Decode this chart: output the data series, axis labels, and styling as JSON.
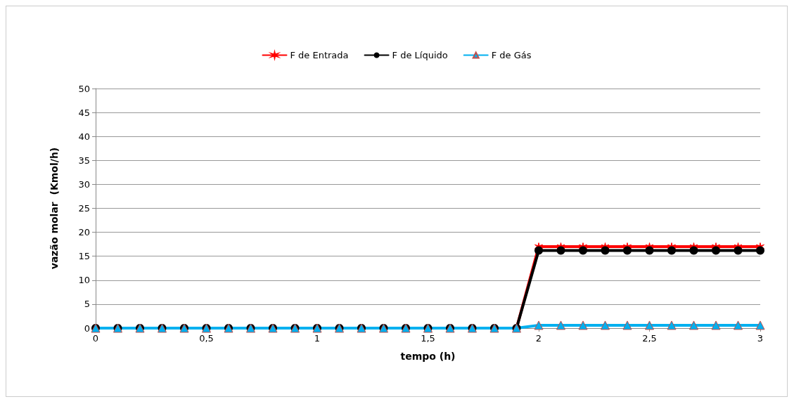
{
  "chart_data": {
    "type": "line",
    "xlabel": "tempo (h)",
    "ylabel": "vazão molar  (Kmol/h)",
    "x": [
      0,
      0.1,
      0.2,
      0.3,
      0.4,
      0.5,
      0.6,
      0.7,
      0.8,
      0.9,
      1,
      1.1,
      1.2,
      1.3,
      1.4,
      1.5,
      1.6,
      1.7,
      1.8,
      1.9,
      2,
      2.1,
      2.2,
      2.3,
      2.4,
      2.5,
      2.6,
      2.7,
      2.8,
      2.9,
      3
    ],
    "series": [
      {
        "name": "F de Entrada",
        "color": "#ff0000",
        "marker": "cross",
        "values": [
          null,
          null,
          null,
          null,
          null,
          null,
          null,
          null,
          null,
          null,
          null,
          null,
          null,
          null,
          null,
          null,
          null,
          null,
          null,
          0,
          17,
          17,
          17,
          17,
          17,
          17,
          17,
          17,
          17,
          17,
          17
        ]
      },
      {
        "name": "F de Líquido",
        "color": "#000000",
        "marker": "circle",
        "values": [
          0,
          0,
          0,
          0,
          0,
          0,
          0,
          0,
          0,
          0,
          0,
          0,
          0,
          0,
          0,
          0,
          0,
          0,
          0,
          0,
          16.2,
          16.2,
          16.2,
          16.2,
          16.2,
          16.2,
          16.2,
          16.2,
          16.2,
          16.2,
          16.2
        ]
      },
      {
        "name": "F de Gás",
        "color": "#00b0f0",
        "marker": "triangle",
        "values": [
          0,
          0,
          0,
          0,
          0,
          0,
          0,
          0,
          0,
          0,
          0,
          0,
          0,
          0,
          0,
          0,
          0,
          0,
          0,
          0,
          0.6,
          0.6,
          0.6,
          0.6,
          0.6,
          0.6,
          0.6,
          0.6,
          0.6,
          0.6,
          0.6
        ]
      }
    ],
    "xlim": [
      0,
      3
    ],
    "xticks": [
      0,
      {
        "value": 0.5,
        "label": "0,5"
      },
      1,
      {
        "value": 1.5,
        "label": "1,5"
      },
      2,
      {
        "value": 2.5,
        "label": "2,5"
      },
      3
    ],
    "ylim": [
      0,
      50
    ],
    "yticks": [
      0,
      5,
      10,
      15,
      20,
      25,
      30,
      35,
      40,
      45,
      50
    ],
    "grid": "y",
    "legend": "top",
    "line_style": "solid"
  }
}
